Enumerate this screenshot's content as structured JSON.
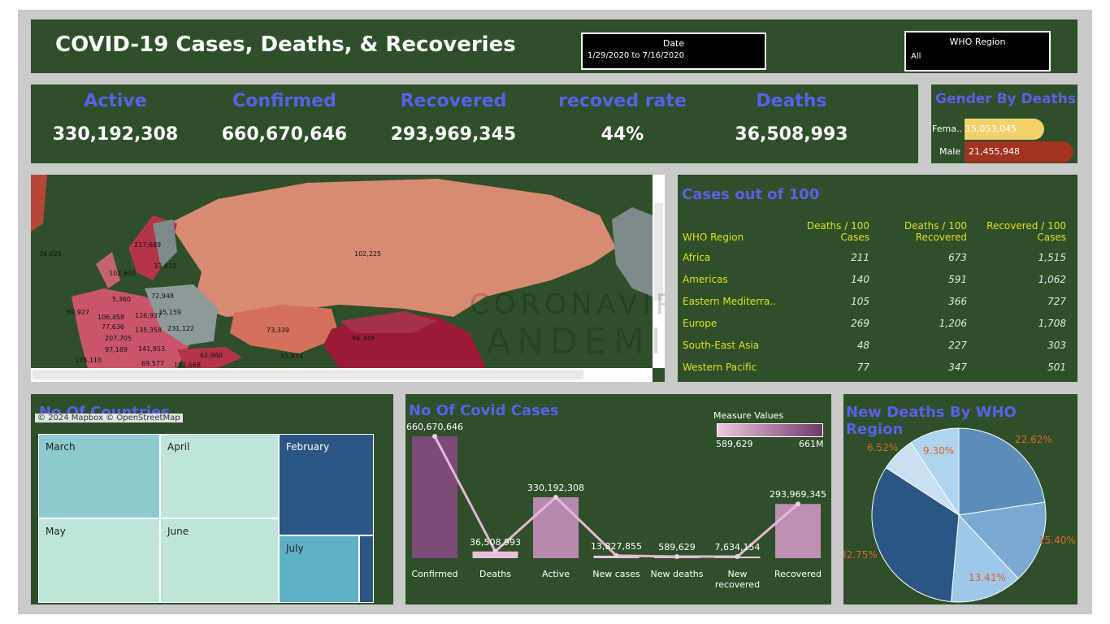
{
  "header": {
    "title": "COVID-19 Cases, Deaths, & Recoveries",
    "date_filter": {
      "label": "Date",
      "value": "1/29/2020 to 7/16/2020"
    },
    "region_filter": {
      "label": "WHO Region",
      "value": "All"
    }
  },
  "kpis": [
    {
      "label": "Active",
      "value": "330,192,308"
    },
    {
      "label": "Confirmed",
      "value": "660,670,646"
    },
    {
      "label": "Recovered",
      "value": "293,969,345"
    },
    {
      "label": "recoved rate",
      "value": "44%"
    },
    {
      "label": "Deaths",
      "value": "36,508,993"
    }
  ],
  "gender": {
    "title": "Gender By Deaths",
    "rows": [
      {
        "label": "Fema..",
        "value": "15,053,045",
        "color": "#f2d06b"
      },
      {
        "label": "Male",
        "value": "21,455,948",
        "color": "#a3321f"
      }
    ]
  },
  "map": {
    "labels": [
      "36,625",
      "217,689",
      "33,410",
      "102,600",
      "102,225",
      "72,948",
      "5,360",
      "69,927",
      "106,458",
      "126,937",
      "35,159",
      "77,636",
      "135,358",
      "231,122",
      "207,705",
      "97,169",
      "141,853",
      "73,339",
      "96,349",
      "178,110",
      "62,960",
      "55,974",
      "69,577",
      "192,668"
    ],
    "attribution": "© 2024 Mapbox © OpenStreetMap",
    "watermark": "CORONAVIRU",
    "watermark2": "ANDEMI"
  },
  "cases": {
    "title": "Cases out of 100",
    "headers": [
      "WHO Region",
      "Deaths / 100 Cases",
      "Deaths / 100 Recovered",
      "Recovered / 100 Cases"
    ],
    "header_lines": {
      "deaths_rec": [
        "Deaths / 100",
        "Recovered"
      ],
      "rec_cases": [
        "Recovered / 100",
        "Cases"
      ]
    },
    "rows": [
      {
        "region": "Africa",
        "d": "211",
        "dr": "673",
        "rc": "1,515"
      },
      {
        "region": "Americas",
        "d": "140",
        "dr": "591",
        "rc": "1,062"
      },
      {
        "region": "Eastern Mediterra..",
        "d": "105",
        "dr": "366",
        "rc": "727"
      },
      {
        "region": "Europe",
        "d": "269",
        "dr": "1,206",
        "rc": "1,708"
      },
      {
        "region": "South-East Asia",
        "d": "48",
        "dr": "227",
        "rc": "303"
      },
      {
        "region": "Western Pacific",
        "d": "77",
        "dr": "347",
        "rc": "501"
      }
    ]
  },
  "countries": {
    "title": "No Of Countries",
    "months": [
      "March",
      "April",
      "February",
      "May",
      "June",
      "July"
    ]
  },
  "covid_cases": {
    "title": "No Of Covid Cases",
    "legend_title": "Measure Values",
    "legend_min": "589,629",
    "legend_max": "661M"
  },
  "pie": {
    "title": "New Deaths By WHO Region",
    "labels": [
      "22.62%",
      "15.40%",
      "13.41%",
      "32.75%",
      "6.52%",
      "9.30%"
    ]
  },
  "chart_data": [
    {
      "type": "bar",
      "categories": [
        "Confirmed",
        "Deaths",
        "Active",
        "New cases",
        "New deaths",
        "New recovered",
        "Recovered"
      ],
      "category_lines": [
        [
          "Confirmed"
        ],
        [
          "Deaths"
        ],
        [
          "Active"
        ],
        [
          "New cases"
        ],
        [
          "New deaths"
        ],
        [
          "New",
          "recovered"
        ],
        [
          "Recovered"
        ]
      ],
      "values": [
        660670646,
        36508993,
        330192308,
        13827855,
        589629,
        7634154,
        293969345
      ],
      "value_labels": [
        "660,670,646",
        "36,508,993",
        "330,192,308",
        "13,827,855",
        "589,629",
        "7,634,154",
        "293,969,345"
      ],
      "title": "No Of Covid Cases",
      "ylim": [
        0,
        660670646
      ]
    },
    {
      "type": "pie",
      "categories": [
        "22.62%",
        "15.40%",
        "13.41%",
        "32.75%",
        "6.52%",
        "9.30%"
      ],
      "values": [
        22.62,
        15.4,
        13.41,
        32.75,
        6.52,
        9.3
      ],
      "colors": [
        "#5b8db8",
        "#7aa9d1",
        "#9fc8e8",
        "#2b5684",
        "#c8e0f2",
        "#aed4ee"
      ]
    }
  ]
}
